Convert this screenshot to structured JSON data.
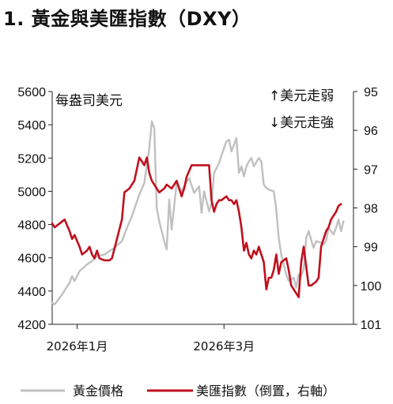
{
  "title": "1. 黃金與美匯指數（DXY）",
  "chart_data": {
    "type": "line",
    "left_axis": {
      "label": "每盎司美元",
      "ticks": [
        4200,
        4400,
        4600,
        4800,
        5000,
        5200,
        5400,
        5600
      ],
      "tick_labels": [
        "4200",
        "4400",
        "4600",
        "4800",
        "5000",
        "5200",
        "5400",
        "5600"
      ],
      "range": [
        4200,
        5600
      ]
    },
    "right_axis": {
      "inverted": true,
      "ticks": [
        95,
        96,
        97,
        98,
        99,
        100,
        101
      ],
      "tick_labels": [
        "95",
        "96",
        "97",
        "98",
        "99",
        "100",
        "101"
      ],
      "range": [
        95,
        101
      ],
      "notes": [
        "↑美元走弱",
        "↓美元走強"
      ]
    },
    "x_axis": {
      "range": [
        "2025-12-22",
        "2026-04-22"
      ],
      "ticks": [
        {
          "date": "2026-01-01",
          "label": "2026年1月"
        },
        {
          "date": "2026-03-01",
          "label": "2026年3月"
        }
      ]
    },
    "series": [
      {
        "name": "黃金價格",
        "axis": "left",
        "color": "#c0c0c0",
        "points": [
          [
            "2025-12-22",
            4330
          ],
          [
            "2025-12-23",
            4320
          ],
          [
            "2025-12-24",
            4340
          ],
          [
            "2025-12-26",
            4380
          ],
          [
            "2025-12-29",
            4450
          ],
          [
            "2025-12-30",
            4490
          ],
          [
            "2025-12-31",
            4460
          ],
          [
            "2026-01-02",
            4520
          ],
          [
            "2026-01-05",
            4560
          ],
          [
            "2026-01-07",
            4580
          ],
          [
            "2026-01-09",
            4610
          ],
          [
            "2026-01-12",
            4620
          ],
          [
            "2026-01-14",
            4640
          ],
          [
            "2026-01-16",
            4660
          ],
          [
            "2026-01-19",
            4700
          ],
          [
            "2026-01-21",
            4780
          ],
          [
            "2026-01-23",
            4850
          ],
          [
            "2026-01-26",
            4980
          ],
          [
            "2026-01-28",
            5050
          ],
          [
            "2026-01-30",
            5260
          ],
          [
            "2026-01-31",
            5420
          ],
          [
            "2026-02-01",
            5380
          ],
          [
            "2026-02-02",
            4900
          ],
          [
            "2026-02-03",
            4820
          ],
          [
            "2026-02-05",
            4700
          ],
          [
            "2026-02-06",
            4650
          ],
          [
            "2026-02-07",
            4950
          ],
          [
            "2026-02-08",
            4770
          ],
          [
            "2026-02-10",
            5050
          ],
          [
            "2026-02-12",
            5000
          ],
          [
            "2026-02-13",
            5030
          ],
          [
            "2026-02-15",
            5080
          ],
          [
            "2026-02-17",
            4990
          ],
          [
            "2026-02-19",
            5030
          ],
          [
            "2026-02-20",
            4870
          ],
          [
            "2026-02-21",
            5000
          ],
          [
            "2026-02-23",
            4880
          ],
          [
            "2026-02-24",
            4930
          ],
          [
            "2026-02-25",
            5110
          ],
          [
            "2026-02-27",
            5170
          ],
          [
            "2026-03-01",
            5260
          ],
          [
            "2026-03-02",
            5300
          ],
          [
            "2026-03-03",
            5310
          ],
          [
            "2026-03-04",
            5240
          ],
          [
            "2026-03-05",
            5280
          ],
          [
            "2026-03-06",
            5320
          ],
          [
            "2026-03-07",
            5110
          ],
          [
            "2026-03-08",
            5150
          ],
          [
            "2026-03-09",
            5090
          ],
          [
            "2026-03-10",
            5150
          ],
          [
            "2026-03-11",
            5180
          ],
          [
            "2026-03-12",
            5200
          ],
          [
            "2026-03-13",
            5150
          ],
          [
            "2026-03-15",
            5200
          ],
          [
            "2026-03-16",
            5180
          ],
          [
            "2026-03-17",
            5040
          ],
          [
            "2026-03-18",
            5020
          ],
          [
            "2026-03-19",
            5010
          ],
          [
            "2026-03-21",
            5000
          ],
          [
            "2026-03-22",
            4890
          ],
          [
            "2026-03-23",
            4720
          ],
          [
            "2026-03-24",
            4620
          ],
          [
            "2026-03-25",
            4560
          ],
          [
            "2026-03-26",
            4500
          ],
          [
            "2026-03-27",
            4460
          ],
          [
            "2026-03-29",
            4480
          ],
          [
            "2026-03-30",
            4420
          ],
          [
            "2026-03-31",
            4500
          ],
          [
            "2026-04-01",
            4490
          ],
          [
            "2026-04-02",
            4530
          ],
          [
            "2026-04-03",
            4720
          ],
          [
            "2026-04-04",
            4760
          ],
          [
            "2026-04-06",
            4660
          ],
          [
            "2026-04-07",
            4700
          ],
          [
            "2026-04-09",
            4690
          ],
          [
            "2026-04-10",
            4680
          ],
          [
            "2026-04-11",
            4700
          ],
          [
            "2026-04-12",
            4780
          ],
          [
            "2026-04-13",
            4760
          ],
          [
            "2026-04-14",
            4740
          ],
          [
            "2026-04-15",
            4780
          ],
          [
            "2026-04-16",
            4830
          ],
          [
            "2026-04-17",
            4760
          ],
          [
            "2026-04-18",
            4820
          ]
        ]
      },
      {
        "name": "美匯指數（倒置，右軸）",
        "axis": "right",
        "color": "#c0101e",
        "points": [
          [
            "2025-12-22",
            98.4
          ],
          [
            "2025-12-23",
            98.5
          ],
          [
            "2025-12-25",
            98.4
          ],
          [
            "2025-12-27",
            98.3
          ],
          [
            "2025-12-29",
            98.6
          ],
          [
            "2025-12-30",
            98.8
          ],
          [
            "2025-12-31",
            98.7
          ],
          [
            "2026-01-02",
            99.0
          ],
          [
            "2026-01-03",
            99.2
          ],
          [
            "2026-01-05",
            99.1
          ],
          [
            "2026-01-06",
            99.0
          ],
          [
            "2026-01-07",
            99.2
          ],
          [
            "2026-01-08",
            99.3
          ],
          [
            "2026-01-09",
            99.1
          ],
          [
            "2026-01-10",
            99.3
          ],
          [
            "2026-01-12",
            99.35
          ],
          [
            "2026-01-14",
            99.35
          ],
          [
            "2026-01-15",
            99.3
          ],
          [
            "2026-01-17",
            98.8
          ],
          [
            "2026-01-19",
            98.3
          ],
          [
            "2026-01-20",
            97.6
          ],
          [
            "2026-01-22",
            97.5
          ],
          [
            "2026-01-24",
            97.3
          ],
          [
            "2026-01-26",
            96.7
          ],
          [
            "2026-01-27",
            96.8
          ],
          [
            "2026-01-28",
            96.9
          ],
          [
            "2026-01-29",
            96.7
          ],
          [
            "2026-01-30",
            97.1
          ],
          [
            "2026-01-31",
            97.3
          ],
          [
            "2026-02-02",
            97.5
          ],
          [
            "2026-02-03",
            97.6
          ],
          [
            "2026-02-05",
            97.5
          ],
          [
            "2026-02-06",
            97.4
          ],
          [
            "2026-02-08",
            97.5
          ],
          [
            "2026-02-10",
            97.3
          ],
          [
            "2026-02-12",
            97.7
          ],
          [
            "2026-02-13",
            97.5
          ],
          [
            "2026-02-14",
            97.2
          ],
          [
            "2026-02-16",
            96.9
          ],
          [
            "2026-02-18",
            96.9
          ],
          [
            "2026-02-19",
            96.9
          ],
          [
            "2026-02-21",
            96.9
          ],
          [
            "2026-02-23",
            96.9
          ],
          [
            "2026-02-24",
            97.8
          ],
          [
            "2026-02-25",
            98.1
          ],
          [
            "2026-02-26",
            97.9
          ],
          [
            "2026-02-27",
            97.8
          ],
          [
            "2026-02-28",
            97.8
          ],
          [
            "2026-03-02",
            97.7
          ],
          [
            "2026-03-03",
            97.8
          ],
          [
            "2026-03-04",
            97.8
          ],
          [
            "2026-03-05",
            97.9
          ],
          [
            "2026-03-06",
            97.8
          ],
          [
            "2026-03-07",
            98.1
          ],
          [
            "2026-03-08",
            98.5
          ],
          [
            "2026-03-09",
            99.1
          ],
          [
            "2026-03-10",
            98.9
          ],
          [
            "2026-03-11",
            99.2
          ],
          [
            "2026-03-12",
            99.3
          ],
          [
            "2026-03-13",
            99.1
          ],
          [
            "2026-03-14",
            99.2
          ],
          [
            "2026-03-15",
            99.0
          ],
          [
            "2026-03-17",
            99.4
          ],
          [
            "2026-03-18",
            100.1
          ],
          [
            "2026-03-19",
            99.8
          ],
          [
            "2026-03-20",
            99.8
          ],
          [
            "2026-03-21",
            99.6
          ],
          [
            "2026-03-22",
            99.2
          ],
          [
            "2026-03-23",
            99.7
          ],
          [
            "2026-03-24",
            99.4
          ],
          [
            "2026-03-26",
            99.3
          ],
          [
            "2026-03-27",
            99.6
          ],
          [
            "2026-03-28",
            100.0
          ],
          [
            "2026-03-29",
            100.1
          ],
          [
            "2026-03-30",
            100.2
          ],
          [
            "2026-03-31",
            100.3
          ],
          [
            "2026-04-01",
            99.4
          ],
          [
            "2026-04-02",
            99.0
          ],
          [
            "2026-04-04",
            100.0
          ],
          [
            "2026-04-05",
            100.0
          ],
          [
            "2026-04-07",
            99.9
          ],
          [
            "2026-04-08",
            99.8
          ],
          [
            "2026-04-09",
            99.0
          ],
          [
            "2026-04-10",
            98.8
          ],
          [
            "2026-04-11",
            98.6
          ],
          [
            "2026-04-12",
            98.5
          ],
          [
            "2026-04-13",
            98.3
          ],
          [
            "2026-04-14",
            98.2
          ],
          [
            "2026-04-15",
            98.1
          ],
          [
            "2026-04-16",
            97.95
          ],
          [
            "2026-04-17",
            97.9
          ]
        ]
      }
    ],
    "legend": {
      "placement": "bottom",
      "entries": [
        "黃金價格",
        "美匯指數（倒置，右軸）"
      ]
    },
    "grid": false
  }
}
